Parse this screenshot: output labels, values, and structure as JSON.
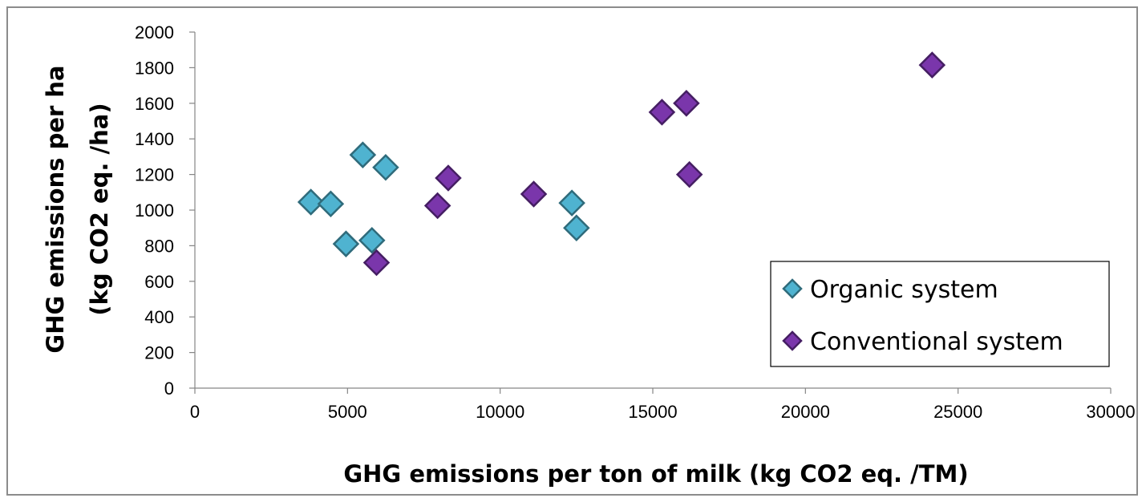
{
  "chart_data": {
    "type": "scatter",
    "xlabel": "GHG emissions per ton of milk (kg CO2 eq. /TM)",
    "ylabel": [
      "GHG emissions per ha",
      "(kg CO2 eq. /ha)"
    ],
    "xlim": [
      0,
      30000
    ],
    "ylim": [
      0,
      2000
    ],
    "x_ticks": [
      0,
      5000,
      10000,
      15000,
      20000,
      25000,
      30000
    ],
    "y_ticks": [
      0,
      200,
      400,
      600,
      800,
      1000,
      1200,
      1400,
      1600,
      1800,
      2000
    ],
    "x_tick_labels": [
      "0",
      "5000",
      "10000",
      "15000",
      "20000",
      "25000",
      "30000"
    ],
    "y_tick_labels": [
      "0",
      "200",
      "400",
      "600",
      "800",
      "1000",
      "1200",
      "1400",
      "1600",
      "1800",
      "2000"
    ],
    "grid": false,
    "legend_position": "bottom-right",
    "series": [
      {
        "name": "Organic system",
        "color": "#4bacc6",
        "marker": "diamond",
        "points": [
          {
            "x": 3800,
            "y": 1045
          },
          {
            "x": 4450,
            "y": 1035
          },
          {
            "x": 4950,
            "y": 810
          },
          {
            "x": 5500,
            "y": 1310
          },
          {
            "x": 5800,
            "y": 830
          },
          {
            "x": 6250,
            "y": 1240
          },
          {
            "x": 12350,
            "y": 1040
          },
          {
            "x": 12500,
            "y": 900
          }
        ]
      },
      {
        "name": "Conventional system",
        "color": "#7030a0",
        "marker": "diamond",
        "points": [
          {
            "x": 5950,
            "y": 705
          },
          {
            "x": 7950,
            "y": 1025
          },
          {
            "x": 8300,
            "y": 1180
          },
          {
            "x": 11100,
            "y": 1090
          },
          {
            "x": 15300,
            "y": 1550
          },
          {
            "x": 16100,
            "y": 1600
          },
          {
            "x": 16200,
            "y": 1200
          },
          {
            "x": 24150,
            "y": 1815
          }
        ]
      }
    ]
  }
}
